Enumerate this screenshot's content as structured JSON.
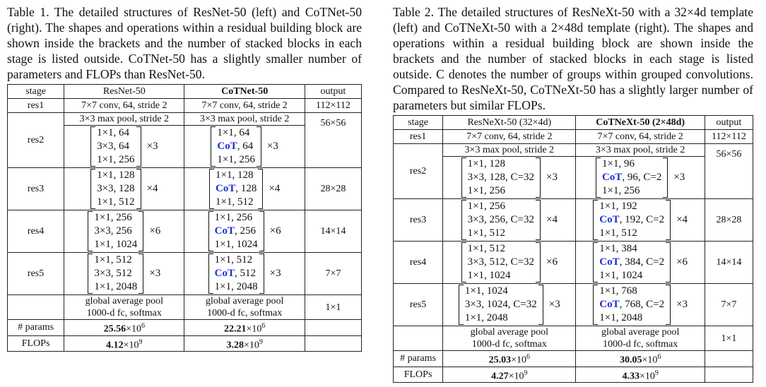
{
  "table1": {
    "caption": "Table 1. The detailed structures of ResNet-50 (left) and CoTNet-50 (right). The shapes and operations within a residual building block are shown inside the brackets and the number of stacked blocks in each stage is listed outside. CoTNet-50 has a slightly smaller number of parameters and FLOPs than ResNet-50.",
    "headers": [
      "stage",
      "ResNet-50",
      "CoTNet-50",
      "output"
    ],
    "res1": {
      "stage": "res1",
      "a": "7×7 conv, 64, stride 2",
      "b": "7×7 conv, 64, stride 2",
      "out": "112×112"
    },
    "pool": "3×3 max pool, stride 2",
    "stages": [
      {
        "stage": "res2",
        "out": "56×56",
        "a": [
          "1×1, 64",
          "3×3, 64",
          "1×1, 256"
        ],
        "a_rep": "×3",
        "b_cot": "CoT",
        "b": [
          "1×1, 64",
          ", 64",
          "1×1, 256"
        ],
        "b_rep": "×3"
      },
      {
        "stage": "res3",
        "out": "28×28",
        "a": [
          "1×1, 128",
          "3×3, 128",
          "1×1, 512"
        ],
        "a_rep": "×4",
        "b_cot": "CoT",
        "b": [
          "1×1, 128",
          ", 128",
          "1×1, 512"
        ],
        "b_rep": "×4"
      },
      {
        "stage": "res4",
        "out": "14×14",
        "a": [
          "1×1, 256",
          "3×3, 256",
          "1×1, 1024"
        ],
        "a_rep": "×6",
        "b_cot": "CoT",
        "b": [
          "1×1, 256",
          ", 256",
          "1×1, 1024"
        ],
        "b_rep": "×6"
      },
      {
        "stage": "res5",
        "out": "7×7",
        "a": [
          "1×1, 512",
          "3×3, 512",
          "1×1, 2048"
        ],
        "a_rep": "×3",
        "b_cot": "CoT",
        "b": [
          "1×1, 512",
          ", 512",
          "1×1, 2048"
        ],
        "b_rep": "×3"
      }
    ],
    "final": {
      "line1": "global average pool",
      "line2": "1000-d fc, softmax",
      "out": "1×1"
    },
    "params": {
      "label": "# params",
      "a": "25.56",
      "b": "22.21",
      "exp": "×10",
      "pow": "6"
    },
    "flops": {
      "label": "FLOPs",
      "a": "4.12",
      "b": "3.28",
      "exp": "×10",
      "pow": "9"
    }
  },
  "table2": {
    "caption": "Table 2. The detailed structures of ResNeXt-50 with a 32×4d template (left) and CoTNeXt-50 with a 2×48d template (right). The shapes and operations within a residual building block are shown inside the brackets and the number of stacked blocks in each stage is listed outside. C denotes the number of groups within grouped convolutions. Compared to ResNeXt-50, CoTNeXt-50 has a slightly larger number of parameters but similar FLOPs.",
    "headers": [
      "stage",
      "ResNeXt-50 (32×4d)",
      "CoTNeXt-50 (2×48d)",
      "output"
    ],
    "res1": {
      "stage": "res1",
      "a": "7×7 conv, 64, stride 2",
      "b": "7×7 conv, 64, stride 2",
      "out": "112×112"
    },
    "pool": "3×3 max pool, stride 2",
    "stages": [
      {
        "stage": "res2",
        "out": "56×56",
        "a": [
          "1×1, 128",
          "3×3, 128, C=32",
          "1×1, 256"
        ],
        "a_rep": "×3",
        "b_cot": "CoT",
        "b": [
          "1×1, 96",
          ", 96, C=2",
          "1×1, 256"
        ],
        "b_rep": "×3"
      },
      {
        "stage": "res3",
        "out": "28×28",
        "a": [
          "1×1, 256",
          "3×3, 256, C=32",
          "1×1, 512"
        ],
        "a_rep": "×4",
        "b_cot": "CoT",
        "b": [
          "1×1, 192",
          ", 192, C=2",
          "1×1, 512"
        ],
        "b_rep": "×4"
      },
      {
        "stage": "res4",
        "out": "14×14",
        "a": [
          "1×1, 512",
          "3×3, 512, C=32",
          "1×1, 1024"
        ],
        "a_rep": "×6",
        "b_cot": "CoT",
        "b": [
          "1×1, 384",
          ", 384, C=2",
          "1×1, 1024"
        ],
        "b_rep": "×6"
      },
      {
        "stage": "res5",
        "out": "7×7",
        "a": [
          "1×1, 1024",
          "3×3, 1024, C=32",
          "1×1, 2048"
        ],
        "a_rep": "×3",
        "b_cot": "CoT",
        "b": [
          "1×1, 768",
          ", 768, C=2",
          "1×1, 2048"
        ],
        "b_rep": "×3"
      }
    ],
    "final": {
      "line1": "global average pool",
      "line2": "1000-d fc, softmax",
      "out": "1×1"
    },
    "params": {
      "label": "# params",
      "a": "25.03",
      "b": "30.05",
      "exp": "×10",
      "pow": "6"
    },
    "flops": {
      "label": "FLOPs",
      "a": "4.27",
      "b": "4.33",
      "exp": "×10",
      "pow": "9"
    }
  },
  "colors": {
    "cot": "#1a2fd6"
  }
}
